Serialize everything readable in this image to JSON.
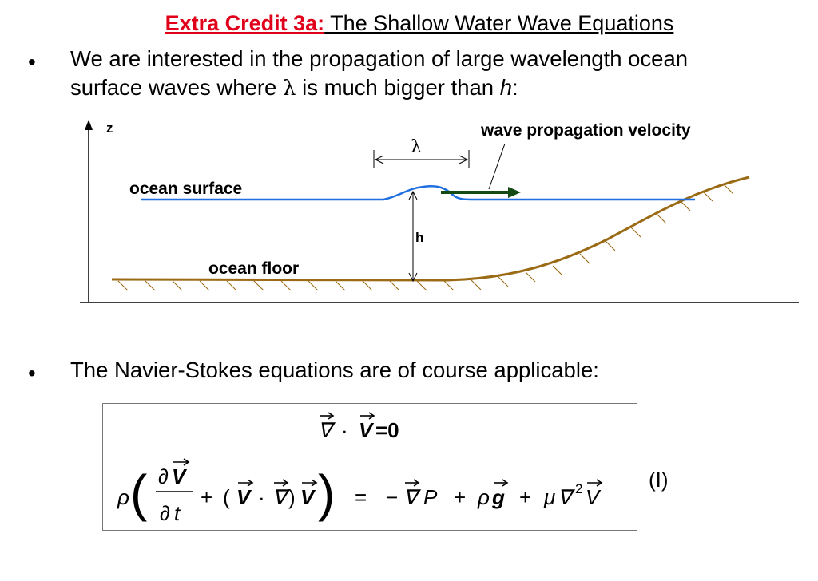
{
  "slide": {
    "title_red": "Extra Credit 3a:",
    "title_rest": " The Shallow Water Wave Equations",
    "bullet_glyph": "•",
    "bullet1": {
      "line1": "We are interested in the propagation of large wavelength ocean",
      "line2_a": "surface waves where ",
      "line2_sym": "λ",
      "line2_b": " is much bigger than ",
      "line2_h": "h",
      "line2_c": ":"
    },
    "bullet2": "The Navier-Stokes equations are of course applicable:",
    "equation_number": "(I)"
  },
  "diagram": {
    "z_label": "z",
    "wave_velocity_label": "wave propagation velocity",
    "lambda_label": "λ",
    "ocean_surface_label": "ocean surface",
    "h_label": "h",
    "ocean_floor_label": "ocean floor",
    "colors": {
      "surface": "#1f6fe0",
      "floor": "#9a6a14",
      "arrow": "#144a14"
    }
  },
  "equations": {
    "continuity": {
      "nabla": "∇",
      "dot": "·",
      "V": "V",
      "eq": "=0"
    },
    "momentum": {
      "rho": "ρ",
      "d": "∂",
      "V": "V",
      "t": "t",
      "plus": "+",
      "dot": "·",
      "nabla": "∇",
      "equals": "=",
      "minus": "−",
      "P": "P",
      "g": "g",
      "mu": "μ",
      "sq": "2"
    }
  }
}
